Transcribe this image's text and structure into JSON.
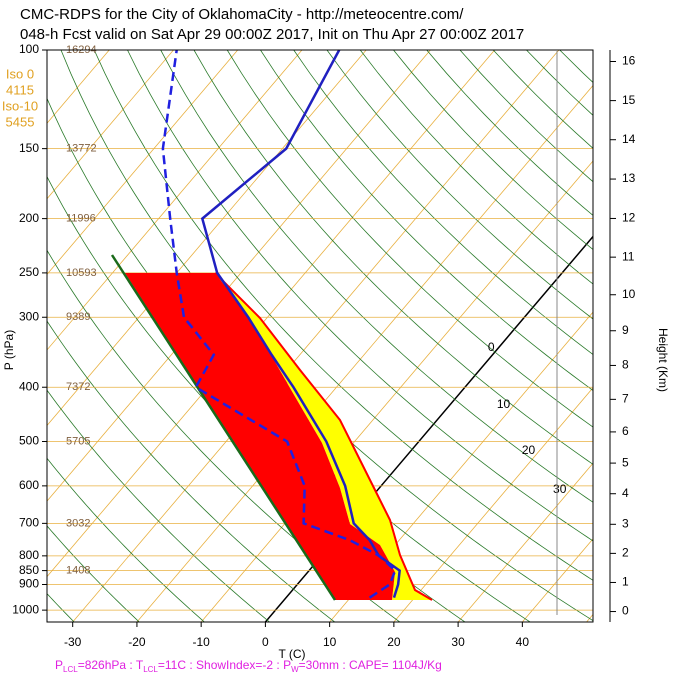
{
  "chart_data": {
    "type": "skewt",
    "title": "CMC-RDPS for the City of OklahomaCity - http://meteocentre.com/",
    "subtitle": "048-h Fcst valid on Sat Apr 29 00:00Z 2017, Init on Thu Apr 27 00:00Z 2017",
    "ylabel": "P (hPa)",
    "xlabel": "T (C)",
    "y2label": "Height (Km)",
    "ylim": [
      100,
      1050
    ],
    "log_scale": true,
    "yticks": [
      100,
      150,
      200,
      250,
      300,
      400,
      500,
      600,
      700,
      800,
      850,
      900,
      1000
    ],
    "xlim": [
      -34,
      51
    ],
    "xticks": [
      -30,
      -20,
      -10,
      0,
      10,
      20,
      30,
      40
    ],
    "y2ticks": [
      0,
      1,
      2,
      3,
      4,
      5,
      6,
      7,
      8,
      9,
      10,
      11,
      12,
      13,
      14,
      15,
      16
    ],
    "heights": {
      "levels": [
        100,
        150,
        200,
        250,
        300,
        400,
        500,
        700,
        850
      ],
      "values": [
        16294,
        13772,
        11996,
        10593,
        9389,
        7372,
        5705,
        3032,
        1408
      ]
    },
    "freezing_labels": [
      "Iso 0",
      "4115",
      "Iso-10",
      "5455"
    ],
    "isotherm_labels": [
      0,
      10,
      20,
      30
    ],
    "levels": [
      950,
      900,
      850,
      800,
      750,
      700,
      600,
      500,
      400,
      350,
      300,
      250,
      200,
      150,
      100
    ],
    "series": [
      {
        "color": "#2020c0",
        "dash": false,
        "values": [
          16.8,
          15.7,
          14.1,
          8.9,
          5.4,
          0.7,
          -5.6,
          -14.4,
          -26.7,
          -34.4,
          -43,
          -53.7,
          -63.2,
          -59.4,
          -64.2
        ]
      },
      {
        "color": "#2020e0",
        "dash": true,
        "values": [
          13.0,
          14.4,
          13.4,
          9.0,
          2.3,
          -7.1,
          -11.9,
          -20.5,
          -41.9,
          -43.4,
          -53,
          -60,
          -68.2,
          -78.6,
          -89.5
        ]
      }
    ],
    "footer": [
      "P",
      "LCL",
      "=826hPa : T",
      "LCL",
      "=11C : ShowIndex=-2 : P",
      "W",
      "=30mm : CAPE= 1104J/Kg"
    ]
  }
}
